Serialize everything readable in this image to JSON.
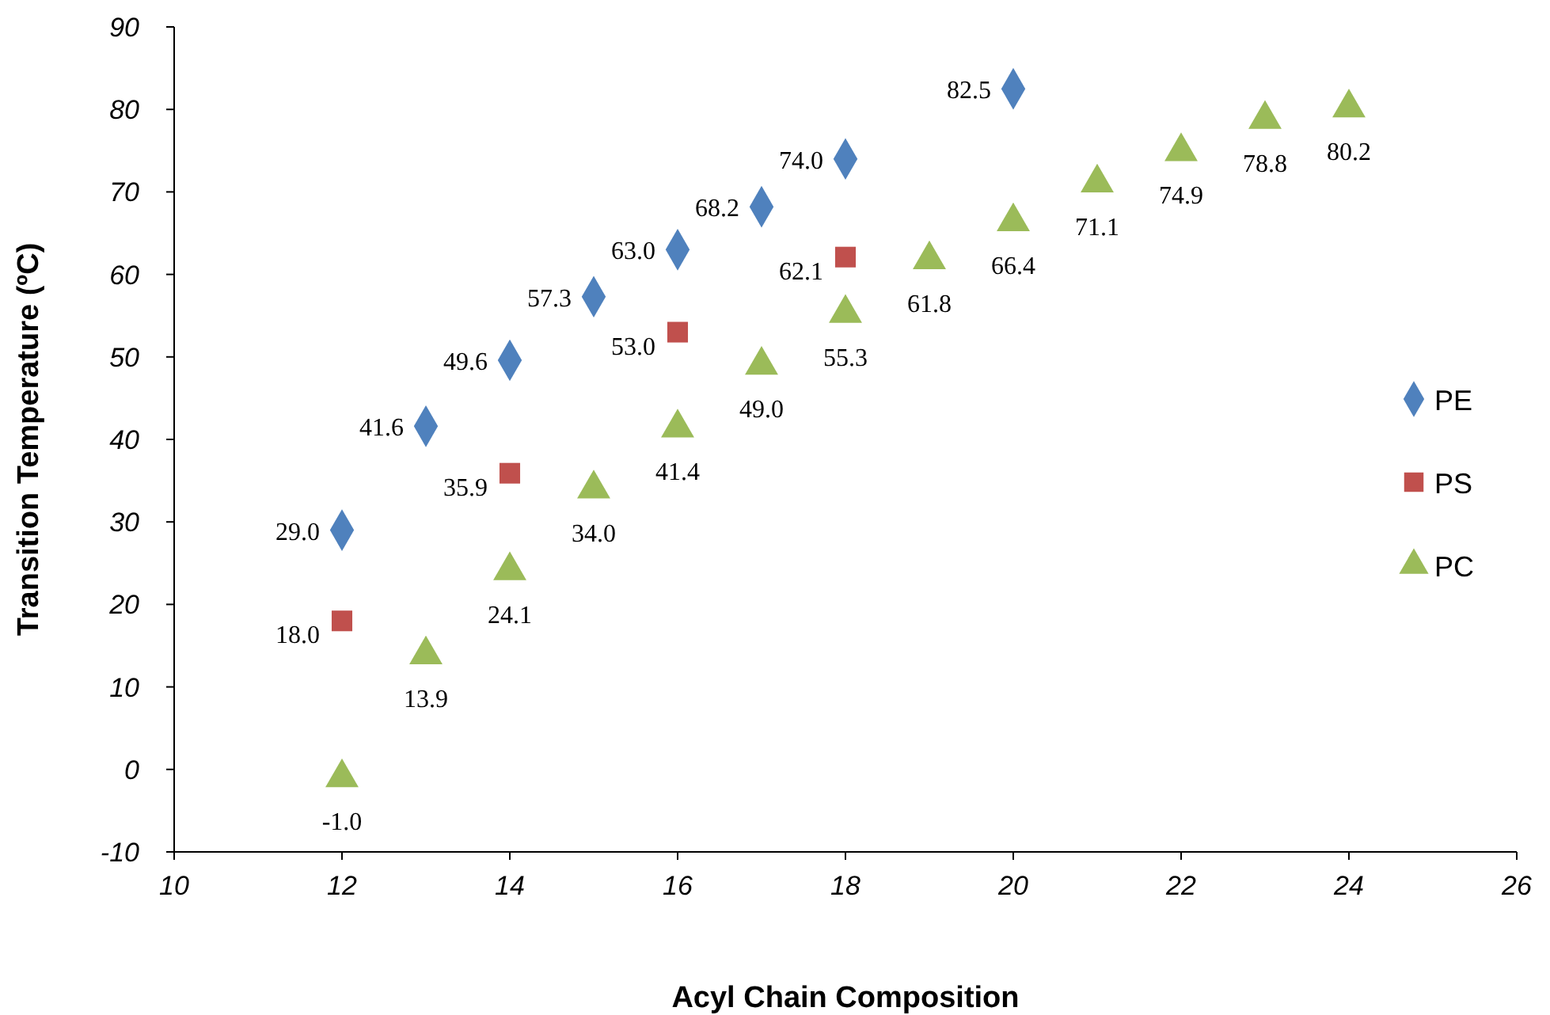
{
  "chart_data": {
    "type": "scatter",
    "xlabel": "Acyl Chain Composition",
    "ylabel": "Transition Temperature (ºC)",
    "xlim": [
      10,
      26
    ],
    "xticks": [
      10,
      12,
      14,
      16,
      18,
      20,
      22,
      24,
      26
    ],
    "ylim": [
      -10,
      90
    ],
    "yticks": [
      -10,
      0,
      10,
      20,
      30,
      40,
      50,
      60,
      70,
      80,
      90
    ],
    "grid": false,
    "legend": "right",
    "series": [
      {
        "name": "PE",
        "color": "#4f81bd",
        "marker": "diamond",
        "x": [
          12,
          13,
          14,
          15,
          16,
          17,
          18,
          20
        ],
        "values": [
          29.0,
          41.6,
          49.6,
          57.3,
          63.0,
          68.2,
          74.0,
          82.5
        ],
        "value_labels": [
          "29.0",
          "41.6",
          "49.6",
          "57.3",
          "63.0",
          "68.2",
          "74.0",
          "82.5"
        ]
      },
      {
        "name": "PS",
        "color": "#c0504d",
        "marker": "square",
        "x": [
          12,
          14,
          16,
          18
        ],
        "values": [
          18.0,
          35.9,
          53.0,
          62.1
        ],
        "value_labels": [
          "18.0",
          "35.9",
          "53.0",
          "62.1"
        ]
      },
      {
        "name": "PC",
        "color": "#9bbb59",
        "marker": "triangle",
        "x": [
          12,
          13,
          14,
          15,
          16,
          17,
          18,
          19,
          20,
          21,
          22,
          23,
          24
        ],
        "values": [
          -1.0,
          13.9,
          24.1,
          34.0,
          41.4,
          49.0,
          55.3,
          61.8,
          66.4,
          71.1,
          74.9,
          78.8,
          80.2
        ],
        "value_labels": [
          "-1.0",
          "13.9",
          "24.1",
          "34.0",
          "41.4",
          "49.0",
          "55.3",
          "61.8",
          "66.4",
          "71.1",
          "74.9",
          "78.8",
          "80.2"
        ]
      }
    ]
  }
}
